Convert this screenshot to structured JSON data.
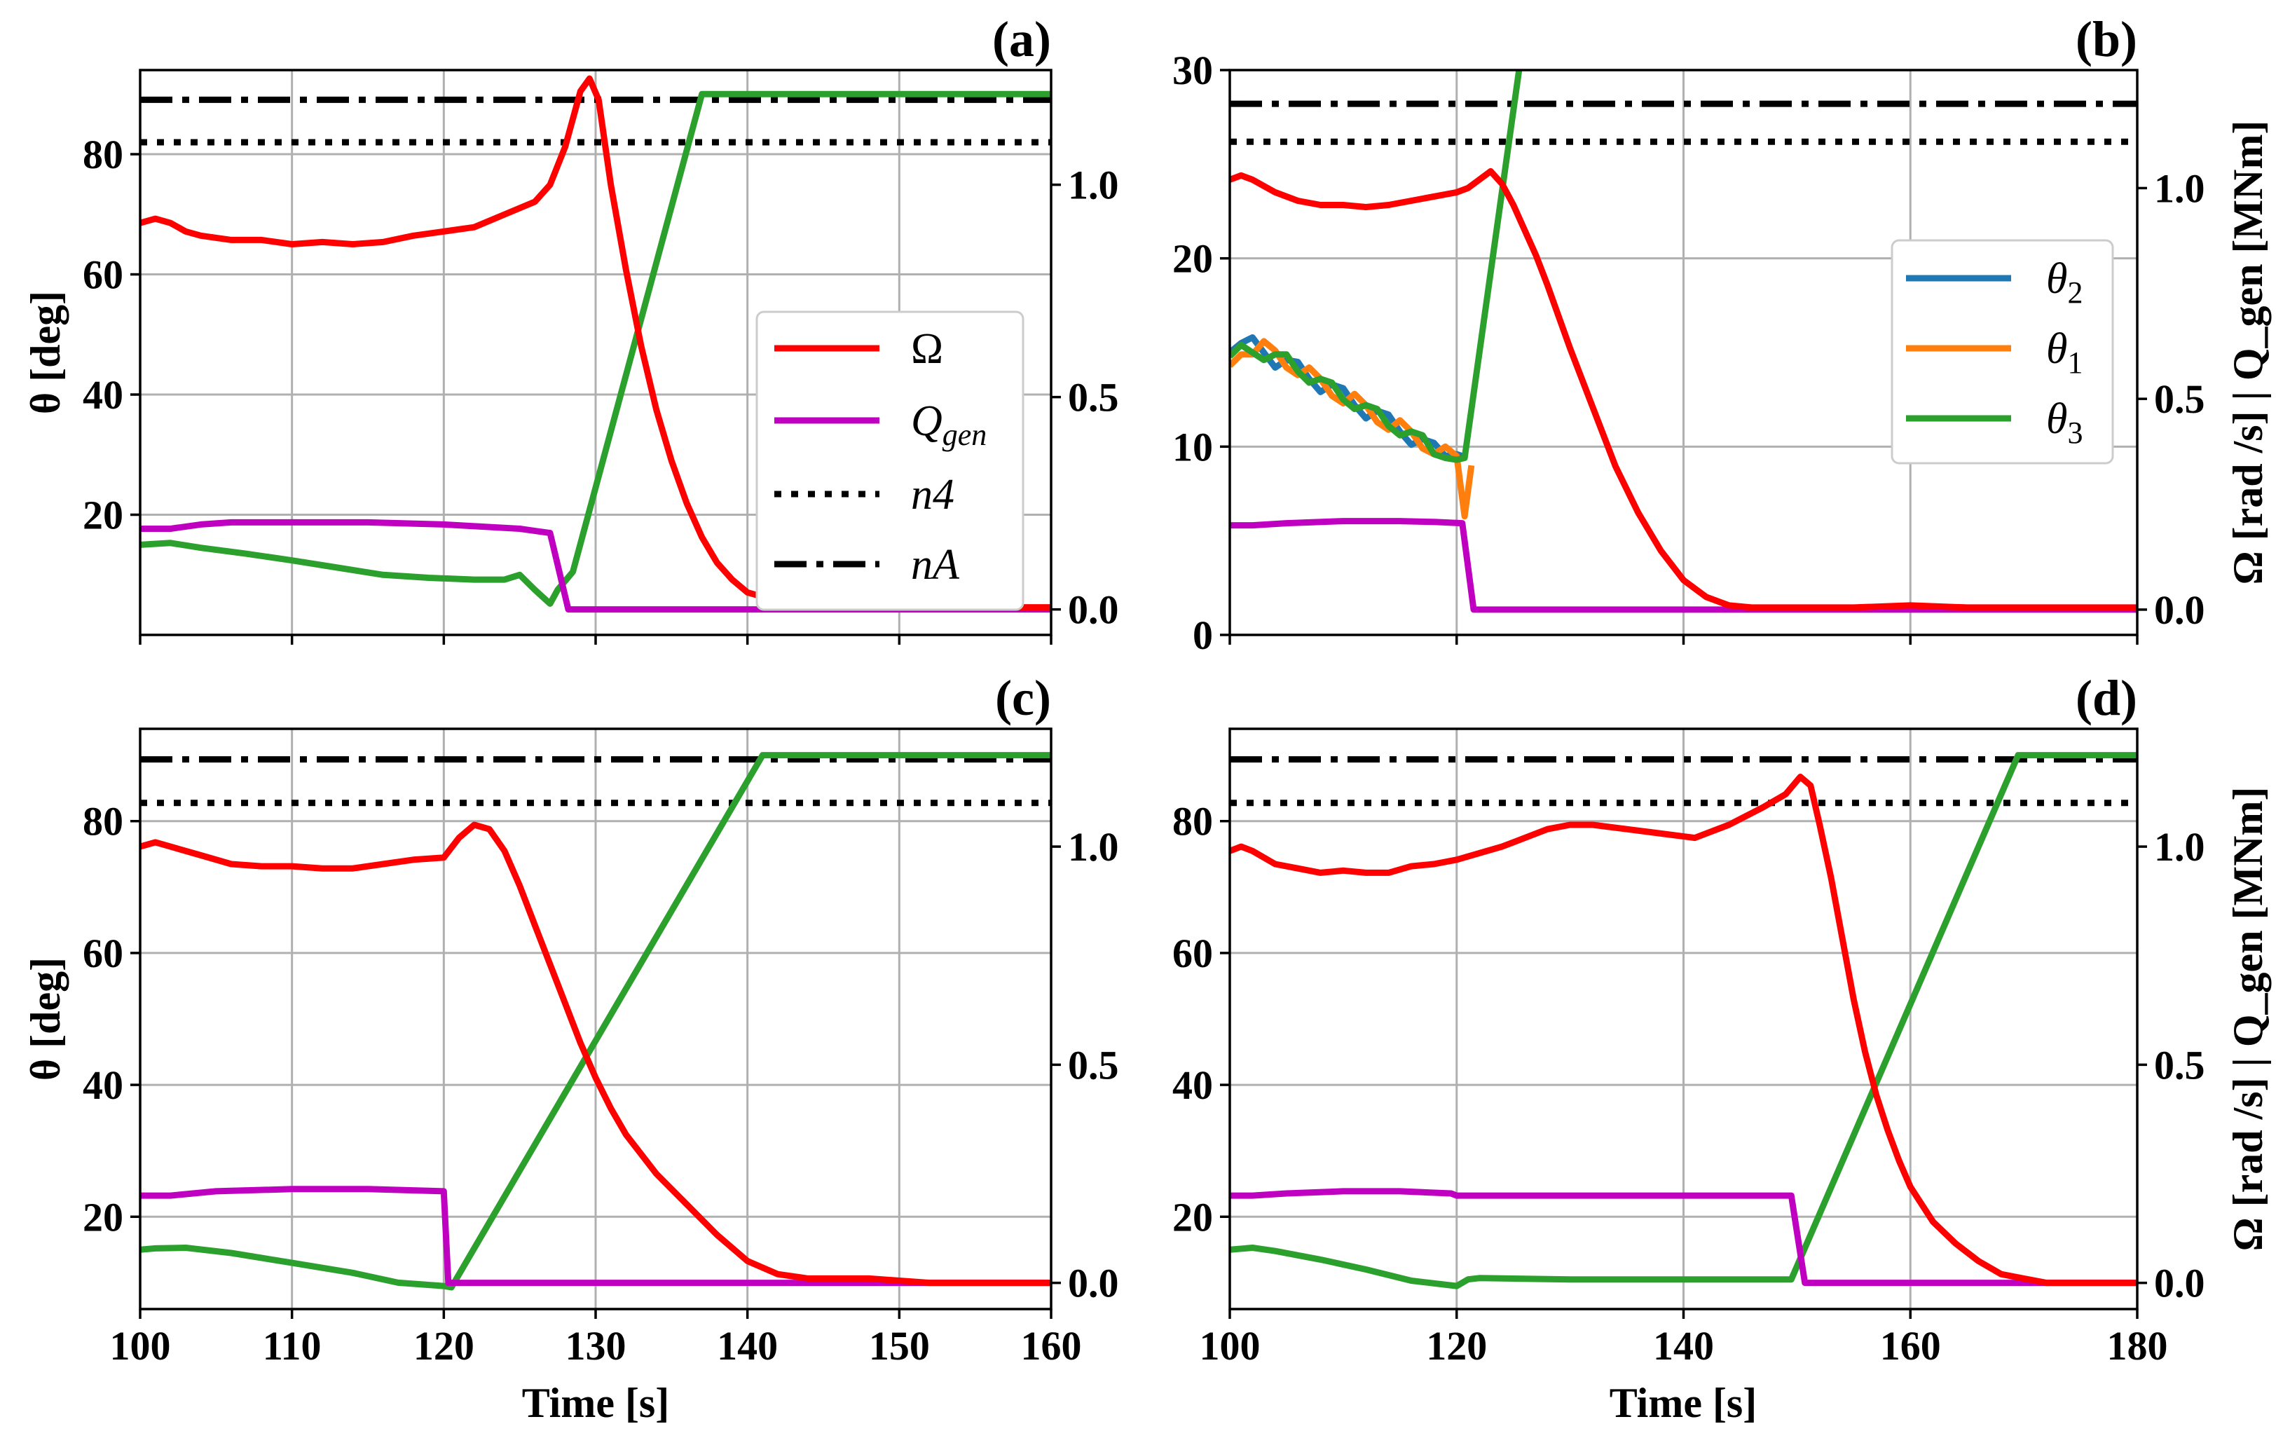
{
  "colors": {
    "Omega": "#ff0000",
    "Qgen": "#c000c0",
    "theta2": "#1f77b4",
    "theta1": "#ff7f0e",
    "theta3": "#2ca02c",
    "ref": "#000000"
  },
  "chart_data": [
    {
      "type": "line",
      "panel": "a",
      "tag": "(a)",
      "xlim": [
        100,
        160
      ],
      "ylim": [
        0,
        94
      ],
      "y2lim": [
        -0.06,
        1.27
      ],
      "xticks": [
        100,
        110,
        120,
        130,
        140,
        150,
        160
      ],
      "yticks": [
        20,
        40,
        60,
        80
      ],
      "y2ticks": [
        0.0,
        0.5,
        1.0
      ],
      "ytick_labels": [
        "20",
        "40",
        "60",
        "80"
      ],
      "y2tick_labels": [
        "0.0",
        "0.5",
        "1.0"
      ],
      "xtick_labels": [],
      "ylabel": "θ [deg]",
      "y2label": "",
      "xlabel": "",
      "legend": {
        "position": "center-right",
        "entries": [
          {
            "key": "Omega",
            "label": "Ω",
            "style": "solid"
          },
          {
            "key": "Qgen",
            "label": "Q",
            "sub": "gen",
            "style": "solid"
          },
          {
            "key": "n4",
            "label": "n4",
            "style": "dotted"
          },
          {
            "key": "nA",
            "label": "nA",
            "style": "dashdot"
          }
        ]
      },
      "series": [
        {
          "key": "nA",
          "axis": "right",
          "style": "dashdot",
          "x": [
            100,
            160
          ],
          "y": [
            1.2,
            1.2
          ]
        },
        {
          "key": "n4",
          "axis": "right",
          "style": "dotted",
          "x": [
            100,
            160
          ],
          "y": [
            1.1,
            1.1
          ]
        },
        {
          "key": "theta3",
          "axis": "left",
          "x": [
            100,
            102,
            104,
            107,
            110,
            113,
            116,
            119,
            122,
            124,
            125,
            126,
            127,
            127.5,
            128,
            128.5,
            137,
            140,
            150,
            160
          ],
          "y": [
            15,
            15.3,
            14.5,
            13.5,
            12.4,
            11.2,
            10,
            9.5,
            9.2,
            9.2,
            10,
            7.5,
            5.2,
            7.5,
            9,
            10.5,
            90,
            90,
            90,
            90
          ]
        },
        {
          "key": "Qgen",
          "axis": "right",
          "x": [
            100,
            102,
            104,
            106,
            110,
            115,
            120,
            125,
            127,
            128.2,
            129,
            135,
            140,
            150,
            160
          ],
          "y": [
            0.19,
            0.19,
            0.2,
            0.205,
            0.205,
            0.205,
            0.2,
            0.19,
            0.18,
            0.0,
            0.0,
            0.0,
            0.0,
            0.0,
            0.0
          ]
        },
        {
          "key": "Omega",
          "axis": "right",
          "x": [
            100,
            101,
            102,
            103,
            104,
            106,
            108,
            110,
            112,
            114,
            116,
            118,
            120,
            122,
            124,
            126,
            127,
            128,
            129,
            129.6,
            130.2,
            131,
            132,
            133,
            134,
            135,
            136,
            137,
            138,
            139,
            140,
            142,
            145,
            150,
            155,
            160
          ],
          "y": [
            0.91,
            0.92,
            0.91,
            0.89,
            0.88,
            0.87,
            0.87,
            0.86,
            0.865,
            0.86,
            0.865,
            0.88,
            0.89,
            0.9,
            0.93,
            0.96,
            1.0,
            1.09,
            1.22,
            1.25,
            1.2,
            1.0,
            0.8,
            0.62,
            0.47,
            0.35,
            0.25,
            0.17,
            0.11,
            0.07,
            0.04,
            0.02,
            0.01,
            0.005,
            0.005,
            0.005
          ]
        }
      ]
    },
    {
      "type": "line",
      "panel": "b",
      "tag": "(b)",
      "xlim": [
        100,
        180
      ],
      "ylim": [
        0,
        30
      ],
      "y2lim": [
        -0.06,
        1.28
      ],
      "xticks": [
        100,
        120,
        140,
        160,
        180
      ],
      "yticks": [
        0,
        10,
        20,
        30
      ],
      "y2ticks": [
        0.0,
        0.5,
        1.0
      ],
      "ytick_labels": [
        "0",
        "10",
        "20",
        "30"
      ],
      "y2tick_labels": [
        "0.0",
        "0.5",
        "1.0"
      ],
      "xtick_labels": [],
      "ylabel": "",
      "y2label": "Ω [rad /s] | Q_gen [MNm]",
      "xlabel": "",
      "legend": {
        "position": "center-right",
        "entries": [
          {
            "key": "theta2",
            "label": "θ",
            "sub": "2",
            "style": "solid"
          },
          {
            "key": "theta1",
            "label": "θ",
            "sub": "1",
            "style": "solid"
          },
          {
            "key": "theta3",
            "label": "θ",
            "sub": "3",
            "style": "solid"
          }
        ]
      },
      "series": [
        {
          "key": "nA",
          "axis": "right",
          "style": "dashdot",
          "x": [
            100,
            180
          ],
          "y": [
            1.2,
            1.2
          ]
        },
        {
          "key": "n4",
          "axis": "right",
          "style": "dotted",
          "x": [
            100,
            180
          ],
          "y": [
            1.11,
            1.11
          ]
        },
        {
          "key": "theta2",
          "axis": "left",
          "x": [
            100,
            101,
            102,
            103,
            104,
            105,
            106,
            107,
            108,
            109,
            110,
            111,
            112,
            113,
            114,
            115,
            116,
            117,
            118,
            119,
            120,
            120.5
          ],
          "y": [
            15,
            15.5,
            15.8,
            15.0,
            14.2,
            14.6,
            14.5,
            13.6,
            12.9,
            13.3,
            13.1,
            12.2,
            11.5,
            11.9,
            11.7,
            10.8,
            10.1,
            10.4,
            10.2,
            9.5,
            9.6,
            9.5
          ]
        },
        {
          "key": "theta1",
          "axis": "left",
          "x": [
            100,
            101,
            102,
            103,
            104,
            105,
            106,
            107,
            108,
            109,
            110,
            111,
            112,
            113,
            114,
            115,
            116,
            117,
            118,
            119,
            120,
            120.7,
            121.3
          ],
          "y": [
            14.3,
            14.9,
            14.9,
            15.6,
            15.1,
            14.2,
            13.8,
            14.2,
            13.6,
            12.7,
            12.3,
            12.8,
            12.2,
            11.3,
            10.9,
            11.4,
            10.8,
            9.9,
            9.6,
            10.0,
            9.5,
            6.3,
            9.0
          ]
        },
        {
          "key": "theta3",
          "axis": "left",
          "x": [
            100,
            101,
            102,
            103,
            104,
            105,
            106,
            107,
            108,
            109,
            110,
            111,
            112,
            113,
            114,
            115,
            116,
            117,
            118,
            119,
            120,
            120.7,
            125.5
          ],
          "y": [
            14.8,
            15.4,
            15.0,
            14.6,
            14.9,
            14.9,
            14.0,
            13.4,
            13.6,
            13.4,
            12.5,
            12.0,
            12.2,
            12.0,
            11.1,
            10.6,
            10.8,
            10.6,
            9.6,
            9.4,
            9.3,
            9.4,
            30
          ]
        },
        {
          "key": "Qgen",
          "axis": "right",
          "x": [
            100,
            102,
            105,
            110,
            115,
            118,
            120.5,
            121.5,
            130,
            140,
            150,
            160,
            170,
            180
          ],
          "y": [
            0.2,
            0.2,
            0.205,
            0.21,
            0.21,
            0.208,
            0.205,
            0.0,
            0.0,
            0.0,
            0.0,
            0.0,
            0.0,
            0.0
          ]
        },
        {
          "key": "Omega",
          "axis": "right",
          "x": [
            100,
            101,
            102,
            104,
            106,
            108,
            110,
            112,
            114,
            116,
            118,
            120,
            121,
            122,
            123,
            124,
            125,
            126,
            127,
            128,
            130,
            132,
            134,
            136,
            138,
            140,
            142,
            144,
            146,
            150,
            155,
            160,
            165,
            170,
            175,
            180
          ],
          "y": [
            1.02,
            1.03,
            1.02,
            0.99,
            0.97,
            0.96,
            0.96,
            0.955,
            0.96,
            0.97,
            0.98,
            0.99,
            1.0,
            1.02,
            1.04,
            1.01,
            0.96,
            0.9,
            0.84,
            0.77,
            0.62,
            0.48,
            0.34,
            0.23,
            0.14,
            0.07,
            0.03,
            0.01,
            0.005,
            0.005,
            0.005,
            0.01,
            0.005,
            0.005,
            0.005,
            0.005
          ]
        }
      ]
    },
    {
      "type": "line",
      "panel": "c",
      "tag": "(c)",
      "xlim": [
        100,
        160
      ],
      "ylim": [
        6,
        94
      ],
      "y2lim": [
        -0.06,
        1.27
      ],
      "xticks": [
        100,
        110,
        120,
        130,
        140,
        150,
        160
      ],
      "yticks": [
        20,
        40,
        60,
        80
      ],
      "y2ticks": [
        0.0,
        0.5,
        1.0
      ],
      "ytick_labels": [
        "20",
        "40",
        "60",
        "80"
      ],
      "y2tick_labels": [
        "0.0",
        "0.5",
        "1.0"
      ],
      "xtick_labels": [
        "100",
        "110",
        "120",
        "130",
        "140",
        "150",
        "160"
      ],
      "ylabel": "θ [deg]",
      "y2label": "",
      "xlabel": "Time [s]",
      "series": [
        {
          "key": "nA",
          "axis": "right",
          "style": "dashdot",
          "x": [
            100,
            160
          ],
          "y": [
            1.2,
            1.2
          ]
        },
        {
          "key": "n4",
          "axis": "right",
          "style": "dotted",
          "x": [
            100,
            160
          ],
          "y": [
            1.1,
            1.1
          ]
        },
        {
          "key": "theta3",
          "axis": "left",
          "x": [
            100,
            101,
            103,
            106,
            110,
            114,
            117,
            120,
            120.5,
            141,
            150,
            160
          ],
          "y": [
            15,
            15.2,
            15.3,
            14.5,
            13,
            11.5,
            10,
            9.5,
            9.3,
            90,
            90,
            90
          ]
        },
        {
          "key": "Qgen",
          "axis": "right",
          "x": [
            100,
            102,
            105,
            110,
            115,
            120,
            120.3,
            121,
            130,
            140,
            150,
            160
          ],
          "y": [
            0.2,
            0.2,
            0.21,
            0.215,
            0.215,
            0.21,
            0.0,
            0.0,
            0.0,
            0.0,
            0.0,
            0.0
          ]
        },
        {
          "key": "Omega",
          "axis": "right",
          "x": [
            100,
            101,
            102,
            104,
            106,
            108,
            110,
            112,
            114,
            116,
            118,
            120,
            121,
            122,
            123,
            124,
            125,
            126,
            127,
            128,
            129,
            130,
            131,
            132,
            134,
            136,
            138,
            140,
            142,
            144,
            148,
            152,
            156,
            160
          ],
          "y": [
            1.0,
            1.01,
            1.0,
            0.98,
            0.96,
            0.955,
            0.955,
            0.95,
            0.95,
            0.96,
            0.97,
            0.975,
            1.02,
            1.05,
            1.04,
            0.99,
            0.91,
            0.82,
            0.73,
            0.64,
            0.55,
            0.47,
            0.4,
            0.34,
            0.25,
            0.18,
            0.11,
            0.05,
            0.02,
            0.01,
            0.01,
            0.0,
            0.0,
            0.0
          ]
        }
      ]
    },
    {
      "type": "line",
      "panel": "d",
      "tag": "(d)",
      "xlim": [
        100,
        180
      ],
      "ylim": [
        6,
        94
      ],
      "y2lim": [
        -0.06,
        1.27
      ],
      "xticks": [
        100,
        120,
        140,
        160,
        180
      ],
      "yticks": [
        20,
        40,
        60,
        80
      ],
      "y2ticks": [
        0.0,
        0.5,
        1.0
      ],
      "ytick_labels": [
        "20",
        "40",
        "60",
        "80"
      ],
      "y2tick_labels": [
        "0.0",
        "0.5",
        "1.0"
      ],
      "xtick_labels": [
        "100",
        "120",
        "140",
        "160",
        "180"
      ],
      "ylabel": "",
      "y2label": "Ω [rad /s] | Q_gen [MNm]",
      "xlabel": "Time [s]",
      "series": [
        {
          "key": "nA",
          "axis": "right",
          "style": "dashdot",
          "x": [
            100,
            180
          ],
          "y": [
            1.2,
            1.2
          ]
        },
        {
          "key": "n4",
          "axis": "right",
          "style": "dotted",
          "x": [
            100,
            180
          ],
          "y": [
            1.1,
            1.1
          ]
        },
        {
          "key": "theta3",
          "axis": "left",
          "x": [
            100,
            102,
            104,
            108,
            112,
            116,
            120,
            121,
            122,
            130,
            140,
            149.5,
            169.5,
            175,
            180
          ],
          "y": [
            15,
            15.3,
            14.8,
            13.5,
            12,
            10.3,
            9.5,
            10.5,
            10.7,
            10.5,
            10.5,
            10.5,
            90,
            90,
            90
          ]
        },
        {
          "key": "Qgen",
          "axis": "right",
          "x": [
            100,
            102,
            105,
            110,
            115,
            119.5,
            120,
            125,
            130,
            140,
            149.5,
            150.7,
            155,
            160,
            170,
            180
          ],
          "y": [
            0.2,
            0.2,
            0.205,
            0.21,
            0.21,
            0.205,
            0.2,
            0.2,
            0.2,
            0.2,
            0.2,
            0.0,
            0.0,
            0.0,
            0.0,
            0.0
          ]
        },
        {
          "key": "Omega",
          "axis": "right",
          "x": [
            100,
            101,
            102,
            104,
            106,
            108,
            110,
            112,
            114,
            116,
            118,
            120,
            124,
            128,
            130,
            132,
            135,
            138,
            141,
            144,
            147,
            149,
            150.3,
            151.2,
            152,
            153,
            154,
            155,
            156,
            157,
            158,
            159,
            160,
            162,
            164,
            166,
            168,
            170,
            172,
            176,
            180
          ],
          "y": [
            0.99,
            1.0,
            0.99,
            0.96,
            0.95,
            0.94,
            0.945,
            0.94,
            0.94,
            0.955,
            0.96,
            0.97,
            1.0,
            1.04,
            1.05,
            1.05,
            1.04,
            1.03,
            1.02,
            1.05,
            1.09,
            1.12,
            1.16,
            1.14,
            1.05,
            0.93,
            0.79,
            0.65,
            0.53,
            0.43,
            0.35,
            0.28,
            0.22,
            0.14,
            0.09,
            0.05,
            0.02,
            0.01,
            0.0,
            0.0,
            0.0
          ]
        }
      ]
    }
  ]
}
